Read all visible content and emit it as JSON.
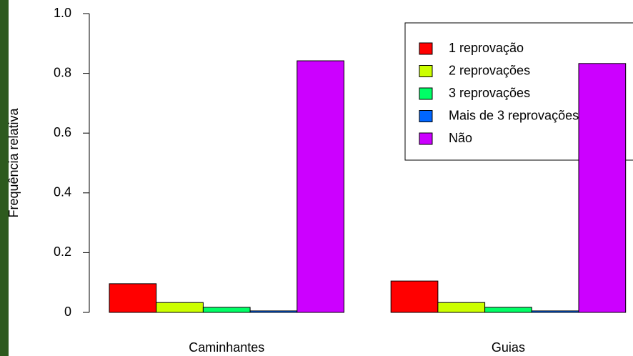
{
  "chart_data": {
    "type": "bar",
    "ylabel": "Frequência relativa",
    "categories": [
      "Caminhantes",
      "Guias"
    ],
    "series": [
      {
        "name": "1 reprovação",
        "color": "#ff0000",
        "values": [
          0.096,
          0.105
        ]
      },
      {
        "name": "2 reprovações",
        "color": "#ccff00",
        "values": [
          0.033,
          0.033
        ]
      },
      {
        "name": "3 reprovações",
        "color": "#00ff66",
        "values": [
          0.017,
          0.017
        ]
      },
      {
        "name": "Mais de 3 reprovações",
        "color": "#0066ff",
        "values": [
          0.005,
          0.005
        ]
      },
      {
        "name": "Não",
        "color": "#cc00ff",
        "values": [
          0.842,
          0.833
        ]
      }
    ],
    "ylim": [
      0,
      1
    ],
    "yticks": [
      0,
      {
        "value": 0.2,
        "label": "0.2"
      },
      {
        "value": 0.4,
        "label": "0.4"
      },
      {
        "value": 0.6,
        "label": "0.6"
      },
      {
        "value": 0.8,
        "label": "0.8"
      },
      {
        "value": 1,
        "label": "1.0"
      }
    ],
    "ytick0label": null,
    "legend": "top-right"
  }
}
